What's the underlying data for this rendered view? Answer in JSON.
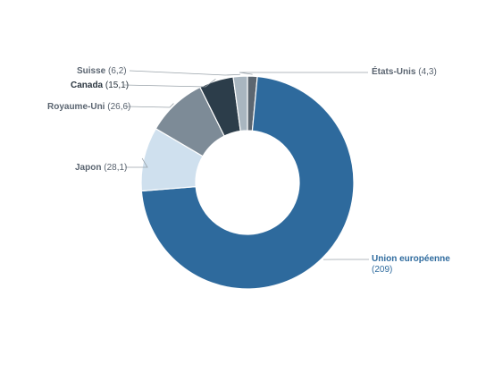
{
  "chart_data": {
    "type": "pie",
    "style": "donut",
    "title": "",
    "slices": [
      {
        "label": "États-Unis",
        "value": 4.3,
        "value_text": "4,3",
        "color": "#5c6670"
      },
      {
        "label": "Union européenne",
        "value": 209,
        "value_text": "209",
        "color": "#2e6a9d"
      },
      {
        "label": "Japon",
        "value": 28.1,
        "value_text": "28,1",
        "color": "#cfe0ee"
      },
      {
        "label": "Royaume-Uni",
        "value": 26.6,
        "value_text": "26,6",
        "color": "#7d8b97"
      },
      {
        "label": "Canada",
        "value": 15.1,
        "value_text": "15,1",
        "color": "#2c3d4a"
      },
      {
        "label": "Suisse",
        "value": 6.2,
        "value_text": "6,2",
        "color": "#a9b6c0"
      }
    ],
    "legend": "none"
  }
}
